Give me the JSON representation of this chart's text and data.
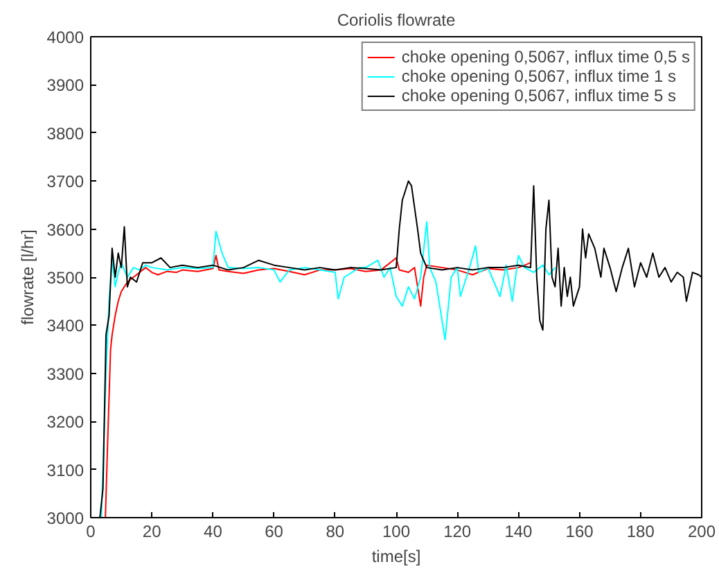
{
  "chart_data": {
    "type": "line",
    "title": "Coriolis flowrate",
    "xlabel": "time[s]",
    "ylabel": "flowrate [l/hr]",
    "xlim": [
      0,
      200
    ],
    "ylim": [
      3000,
      4000
    ],
    "xticks": [
      0,
      20,
      40,
      60,
      80,
      100,
      120,
      140,
      160,
      180,
      200
    ],
    "yticks": [
      3000,
      3100,
      3200,
      3300,
      3400,
      3500,
      3600,
      3700,
      3800,
      3900,
      4000
    ],
    "grid": false,
    "legend": "top right",
    "line_style": "solid",
    "marker": "none",
    "series": [
      {
        "name": "choke opening 0,5067, influx time 0,5 s",
        "color": "#ff0000",
        "x": [
          4.8,
          5.5,
          6.5,
          7,
          8,
          9,
          10,
          12,
          14,
          16,
          18,
          20,
          22,
          25,
          28,
          30,
          35,
          40,
          41,
          42,
          45,
          50,
          55,
          60,
          65,
          70,
          75,
          80,
          85,
          90,
          95,
          100,
          101,
          104,
          106,
          108,
          109,
          110,
          115,
          120,
          125,
          130,
          135,
          140,
          144
        ],
        "values": [
          3000,
          3150,
          3350,
          3380,
          3420,
          3450,
          3470,
          3490,
          3500,
          3510,
          3520,
          3510,
          3505,
          3512,
          3510,
          3515,
          3512,
          3518,
          3545,
          3515,
          3512,
          3508,
          3515,
          3518,
          3512,
          3505,
          3515,
          3515,
          3518,
          3512,
          3515,
          3540,
          3515,
          3510,
          3520,
          3440,
          3500,
          3525,
          3520,
          3515,
          3505,
          3518,
          3515,
          3520,
          3530
        ]
      },
      {
        "name": "choke opening 0,5067, influx time 1 s",
        "color": "#00ffff",
        "x": [
          3.5,
          4.5,
          5,
          6,
          7,
          8,
          9,
          10,
          12,
          14,
          16,
          18,
          20,
          25,
          30,
          35,
          40,
          41,
          43,
          45,
          50,
          55,
          60,
          62,
          65,
          70,
          75,
          80,
          81,
          83,
          88,
          90,
          94,
          96,
          98,
          100,
          102,
          104,
          106,
          108,
          110,
          111,
          113,
          116,
          118,
          120,
          121,
          124,
          126,
          127,
          130,
          134,
          136,
          138,
          140,
          142,
          145,
          148,
          150,
          152
        ],
        "values": [
          3000,
          3200,
          3300,
          3450,
          3540,
          3480,
          3510,
          3530,
          3500,
          3520,
          3515,
          3525,
          3520,
          3515,
          3520,
          3518,
          3520,
          3595,
          3550,
          3520,
          3518,
          3520,
          3515,
          3490,
          3515,
          3520,
          3515,
          3510,
          3455,
          3500,
          3520,
          3520,
          3535,
          3500,
          3520,
          3460,
          3440,
          3480,
          3455,
          3500,
          3615,
          3520,
          3490,
          3370,
          3500,
          3520,
          3460,
          3520,
          3565,
          3510,
          3520,
          3460,
          3525,
          3450,
          3545,
          3520,
          3510,
          3525,
          3505,
          3520
        ]
      },
      {
        "name": "choke opening 0,5067, influx time 5 s",
        "color": "#000000",
        "x": [
          3,
          4,
          5,
          6,
          7,
          8,
          9,
          10,
          11,
          12,
          13,
          15,
          17,
          20,
          23,
          26,
          30,
          35,
          40,
          45,
          50,
          55,
          60,
          65,
          70,
          75,
          80,
          85,
          90,
          95,
          100,
          101,
          102,
          104,
          105,
          107,
          108,
          110,
          115,
          120,
          125,
          130,
          135,
          140,
          144,
          145,
          146,
          147,
          148,
          149,
          150,
          151,
          152,
          153,
          154,
          155,
          156,
          157,
          158,
          160,
          161,
          162,
          163,
          165,
          167,
          168,
          170,
          172,
          174,
          176,
          178,
          180,
          182,
          184,
          186,
          188,
          190,
          192,
          194,
          195,
          197,
          199,
          200
        ],
        "values": [
          3000,
          3060,
          3380,
          3420,
          3560,
          3500,
          3550,
          3520,
          3605,
          3480,
          3500,
          3490,
          3530,
          3530,
          3540,
          3520,
          3525,
          3520,
          3525,
          3515,
          3520,
          3535,
          3525,
          3520,
          3515,
          3520,
          3515,
          3520,
          3518,
          3515,
          3520,
          3600,
          3660,
          3700,
          3690,
          3600,
          3550,
          3520,
          3515,
          3520,
          3515,
          3520,
          3520,
          3525,
          3520,
          3690,
          3500,
          3410,
          3390,
          3600,
          3660,
          3500,
          3480,
          3560,
          3440,
          3520,
          3460,
          3500,
          3440,
          3480,
          3600,
          3540,
          3590,
          3560,
          3500,
          3560,
          3520,
          3470,
          3520,
          3560,
          3480,
          3530,
          3500,
          3550,
          3500,
          3520,
          3490,
          3510,
          3500,
          3450,
          3510,
          3505,
          3500
        ]
      }
    ]
  }
}
